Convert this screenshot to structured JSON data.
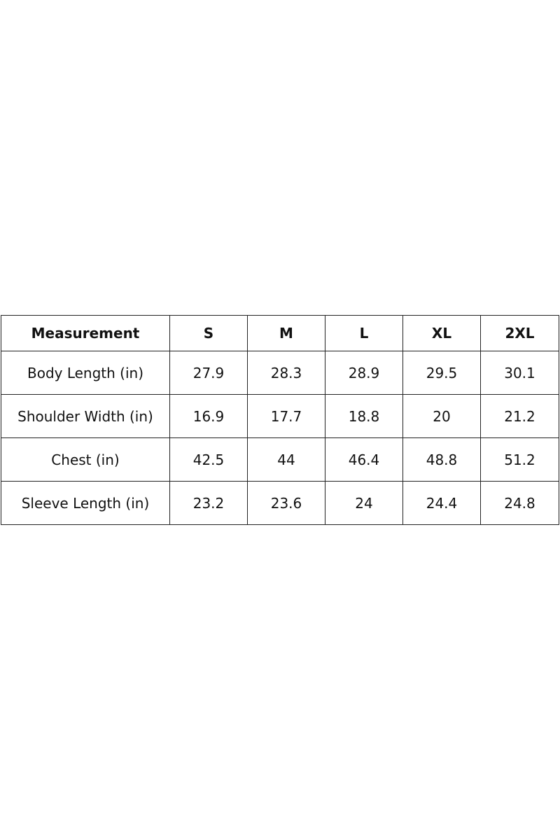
{
  "table": {
    "header": [
      "Measurement",
      "S",
      "M",
      "L",
      "XL",
      "2XL"
    ],
    "rows": [
      [
        "Body Length (in)",
        "27.9",
        "28.3",
        "28.9",
        "29.5",
        "30.1"
      ],
      [
        "Shoulder Width (in)",
        "16.9",
        "17.7",
        "18.8",
        "20",
        "21.2"
      ],
      [
        "Chest (in)",
        "42.5",
        "44",
        "46.4",
        "48.8",
        "51.2"
      ],
      [
        "Sleeve Length (in)",
        "23.2",
        "23.6",
        "24",
        "24.4",
        "24.8"
      ]
    ]
  }
}
